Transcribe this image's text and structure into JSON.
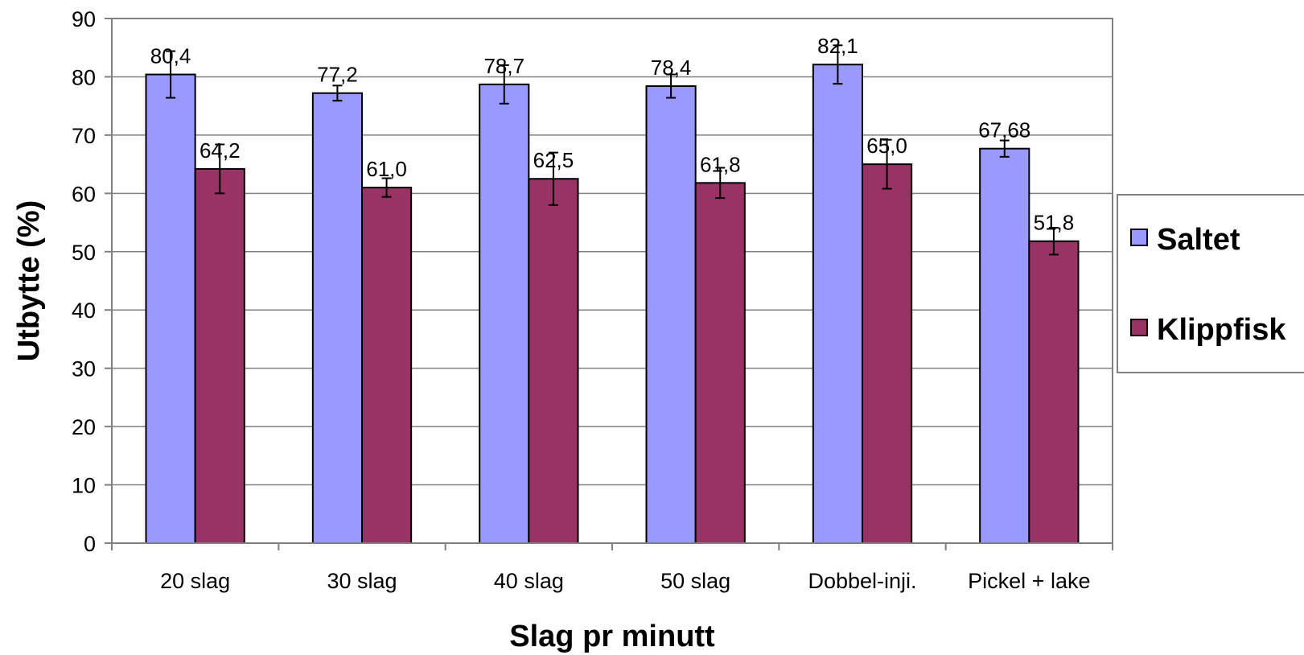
{
  "chart_data": {
    "type": "bar",
    "title": "",
    "xlabel": "Slag pr minutt",
    "ylabel": "Utbytte (%)",
    "ylim": [
      0,
      90
    ],
    "yticks": [
      0,
      10,
      20,
      30,
      40,
      50,
      60,
      70,
      80,
      90
    ],
    "ytick_labels": [
      "0",
      "10",
      "20",
      "30",
      "40",
      "50",
      "60",
      "70",
      "80",
      "90"
    ],
    "grid": true,
    "legend_position": "right",
    "categories": [
      "20 slag",
      "30 slag",
      "40 slag",
      "50 slag",
      "Dobbel-inji.",
      "Pickel + lake"
    ],
    "series": [
      {
        "name": "Saltet",
        "color": "#9999ff",
        "values": [
          80.4,
          77.2,
          78.7,
          78.4,
          82.1,
          67.68
        ],
        "labels": [
          "80,4",
          "77,2",
          "78,7",
          "78,4",
          "82,1",
          "67,68"
        ],
        "error": [
          4.0,
          1.3,
          3.3,
          2.0,
          3.3,
          1.4
        ]
      },
      {
        "name": "Klippfisk",
        "color": "#993366",
        "values": [
          64.2,
          61.0,
          62.5,
          61.8,
          65.0,
          51.8
        ],
        "labels": [
          "64,2",
          "61,0",
          "62,5",
          "61,8",
          "65,0",
          "51,8"
        ],
        "error": [
          4.2,
          1.6,
          4.5,
          2.6,
          4.2,
          2.3
        ]
      }
    ]
  }
}
